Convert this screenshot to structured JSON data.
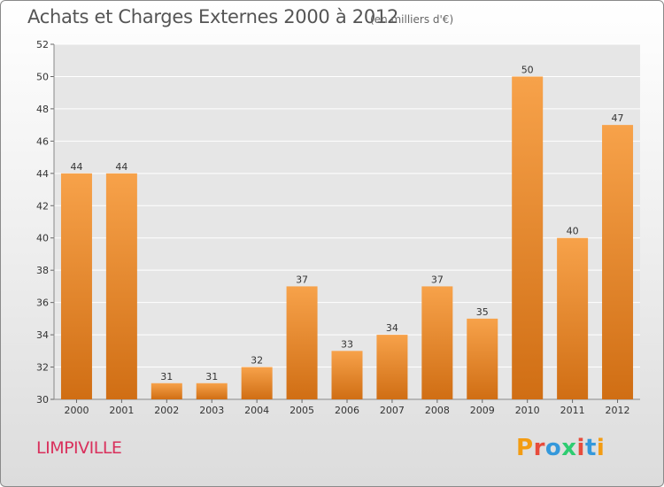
{
  "header": {
    "title": "Achats et Charges Externes 2000 à 2012",
    "subtitle": "(en milliers d'€)"
  },
  "footer": {
    "commune": "LIMPIVILLE",
    "logo": "Proxiti",
    "logo_colors": [
      "#f39c12",
      "#e74c3c",
      "#3498db",
      "#2ecc71",
      "#e74c3c",
      "#3498db",
      "#f39c12"
    ]
  },
  "chart_data": {
    "type": "bar",
    "categories": [
      "2000",
      "2001",
      "2002",
      "2003",
      "2004",
      "2005",
      "2006",
      "2007",
      "2008",
      "2009",
      "2010",
      "2011",
      "2012"
    ],
    "values": [
      44,
      44,
      31,
      31,
      32,
      37,
      33,
      34,
      37,
      35,
      50,
      40,
      47
    ],
    "ylim": [
      30,
      52
    ],
    "yticks": [
      30,
      32,
      34,
      36,
      38,
      40,
      42,
      44,
      46,
      48,
      50,
      52
    ],
    "grid": true,
    "bar_color_top": "#f7a24a",
    "bar_color_bottom": "#d06e14",
    "plot_background": "#e6e6e6"
  }
}
